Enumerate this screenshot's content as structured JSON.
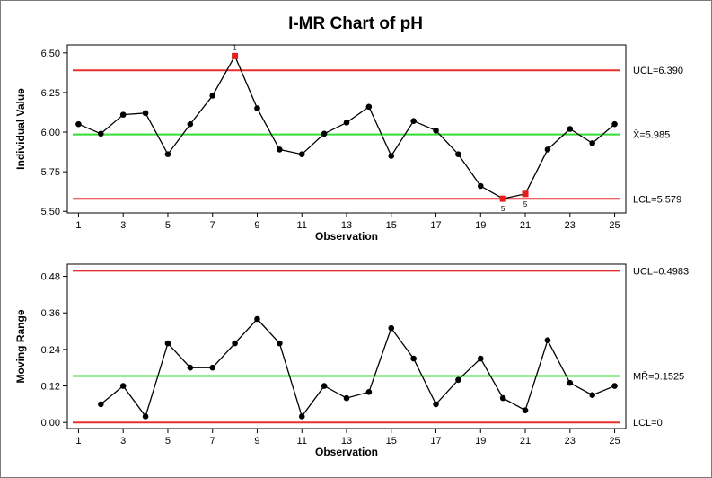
{
  "chart_data": {
    "type": "line",
    "title": "I-MR Chart of pH",
    "colors": {
      "line": "#000000",
      "center": "#33dd33",
      "limit": "#e83030",
      "flag": "#e81c1c"
    },
    "panels": [
      {
        "id": "individual",
        "ylabel": "Individual Value",
        "xlabel": "Observation",
        "ylim": [
          5.49,
          6.55
        ],
        "yticks": [
          5.5,
          5.75,
          6.0,
          6.25,
          6.5
        ],
        "ytick_labels": [
          "5.50",
          "5.75",
          "6.00",
          "6.25",
          "6.50"
        ],
        "xticks": [
          1,
          3,
          5,
          7,
          9,
          11,
          13,
          15,
          17,
          19,
          21,
          23,
          25
        ],
        "xtick_labels": [
          "1",
          "3",
          "5",
          "7",
          "9",
          "11",
          "13",
          "15",
          "17",
          "19",
          "21",
          "23",
          "25"
        ],
        "x": [
          1,
          2,
          3,
          4,
          5,
          6,
          7,
          8,
          9,
          10,
          11,
          12,
          13,
          14,
          15,
          16,
          17,
          18,
          19,
          20,
          21,
          22,
          23,
          24,
          25
        ],
        "values": [
          6.05,
          5.99,
          6.11,
          6.12,
          5.86,
          6.05,
          6.23,
          6.48,
          6.15,
          5.89,
          5.86,
          5.99,
          6.06,
          6.16,
          5.85,
          6.07,
          6.01,
          5.86,
          5.66,
          5.58,
          5.61,
          5.89,
          6.02,
          5.93,
          6.05
        ],
        "limits": [
          {
            "kind": "ucl",
            "value": 6.39,
            "label": "UCL=6.390"
          },
          {
            "kind": "center",
            "value": 5.985,
            "label": "X̄=5.985"
          },
          {
            "kind": "lcl",
            "value": 5.579,
            "label": "LCL=5.579"
          }
        ],
        "flags": [
          {
            "x": 8,
            "marker": "1",
            "side": "above"
          },
          {
            "x": 20,
            "marker": "5",
            "side": "below"
          },
          {
            "x": 21,
            "marker": "5",
            "side": "below"
          }
        ]
      },
      {
        "id": "moving-range",
        "ylabel": "Moving Range",
        "xlabel": "Observation",
        "ylim": [
          -0.02,
          0.52
        ],
        "yticks": [
          0.0,
          0.12,
          0.24,
          0.36,
          0.48
        ],
        "ytick_labels": [
          "0.00",
          "0.12",
          "0.24",
          "0.36",
          "0.48"
        ],
        "xticks": [
          1,
          3,
          5,
          7,
          9,
          11,
          13,
          15,
          17,
          19,
          21,
          23,
          25
        ],
        "xtick_labels": [
          "1",
          "3",
          "5",
          "7",
          "9",
          "11",
          "13",
          "15",
          "17",
          "19",
          "21",
          "23",
          "25"
        ],
        "x": [
          2,
          3,
          4,
          5,
          6,
          7,
          8,
          9,
          10,
          11,
          12,
          13,
          14,
          15,
          16,
          17,
          18,
          19,
          20,
          21,
          22,
          23,
          24,
          25
        ],
        "values": [
          0.06,
          0.12,
          0.02,
          0.26,
          0.18,
          0.18,
          0.26,
          0.34,
          0.26,
          0.02,
          0.12,
          0.08,
          0.1,
          0.31,
          0.21,
          0.06,
          0.14,
          0.21,
          0.08,
          0.04,
          0.27,
          0.13,
          0.09,
          0.12
        ],
        "limits": [
          {
            "kind": "ucl",
            "value": 0.4983,
            "label": "UCL=0.4983"
          },
          {
            "kind": "center",
            "value": 0.1525,
            "label": "MR̄=0.1525"
          },
          {
            "kind": "lcl",
            "value": 0.0,
            "label": "LCL=0"
          }
        ],
        "flags": []
      }
    ]
  }
}
